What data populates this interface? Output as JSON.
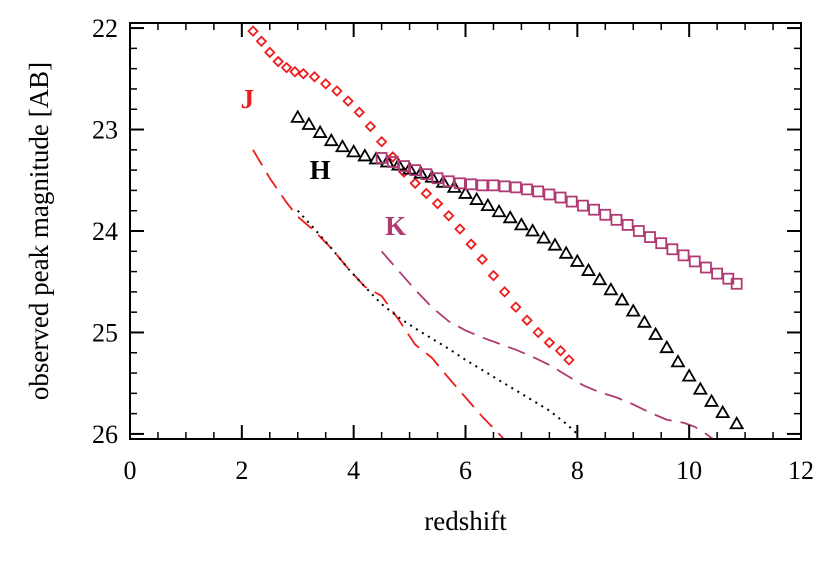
{
  "chart_data": {
    "type": "line",
    "title": "",
    "xlabel": "redshift",
    "ylabel": "observed peak magnitude [AB]",
    "xlim": [
      0,
      12
    ],
    "ylim": [
      26.05,
      21.95
    ],
    "y_inverted": true,
    "grid": false,
    "xticks": [
      0,
      2,
      4,
      6,
      8,
      10,
      12
    ],
    "xtick_labels": [
      "0",
      "2",
      "4",
      "6",
      "8",
      "10",
      "12"
    ],
    "yticks": [
      22,
      23,
      24,
      25,
      26
    ],
    "ytick_labels": [
      "22",
      "23",
      "24",
      "25",
      "26"
    ],
    "colors": {
      "J": "#ee1c1c",
      "H": "#000000",
      "K": "#b03a74"
    },
    "series_labels": [
      {
        "text": "J",
        "color": "#ee1c1c",
        "x": 2.1,
        "y": 22.7
      },
      {
        "text": "H",
        "color": "#000000",
        "x": 3.4,
        "y": 23.4
      },
      {
        "text": "K",
        "color": "#b03a74",
        "x": 4.75,
        "y": 23.95
      }
    ],
    "series": [
      {
        "band": "J",
        "style": "markers",
        "marker": "diamond",
        "color": "#ee1c1c",
        "x": [
          2.2,
          2.35,
          2.5,
          2.65,
          2.8,
          2.95,
          3.1,
          3.3,
          3.5,
          3.7,
          3.9,
          4.1,
          4.3,
          4.5,
          4.7,
          4.9,
          5.1,
          5.3,
          5.5,
          5.7,
          5.9,
          6.1,
          6.3,
          6.5,
          6.7,
          6.9,
          7.1,
          7.3,
          7.5,
          7.7,
          7.85
        ],
        "y": [
          22.03,
          22.13,
          22.24,
          22.33,
          22.39,
          22.43,
          22.45,
          22.48,
          22.55,
          22.62,
          22.72,
          22.83,
          22.97,
          23.12,
          23.27,
          23.42,
          23.53,
          23.63,
          23.73,
          23.85,
          23.98,
          24.13,
          24.28,
          24.44,
          24.6,
          24.75,
          24.88,
          25.0,
          25.1,
          25.18,
          25.27
        ]
      },
      {
        "band": "H",
        "style": "markers",
        "marker": "triangle",
        "color": "#000000",
        "x": [
          3.0,
          3.2,
          3.4,
          3.6,
          3.8,
          4.0,
          4.2,
          4.4,
          4.6,
          4.8,
          5.0,
          5.2,
          5.4,
          5.6,
          5.8,
          6.0,
          6.2,
          6.4,
          6.6,
          6.8,
          7.0,
          7.2,
          7.4,
          7.6,
          7.8,
          8.0,
          8.2,
          8.4,
          8.6,
          8.8,
          9.0,
          9.2,
          9.4,
          9.6,
          9.8,
          10.0,
          10.2,
          10.4,
          10.6,
          10.85
        ],
        "y": [
          22.88,
          22.95,
          23.03,
          23.11,
          23.17,
          23.22,
          23.26,
          23.29,
          23.32,
          23.35,
          23.39,
          23.43,
          23.47,
          23.52,
          23.57,
          23.63,
          23.69,
          23.75,
          23.81,
          23.87,
          23.94,
          24.0,
          24.07,
          24.14,
          24.22,
          24.3,
          24.39,
          24.48,
          24.58,
          24.68,
          24.79,
          24.9,
          25.02,
          25.15,
          25.29,
          25.43,
          25.56,
          25.68,
          25.79,
          25.9
        ]
      },
      {
        "band": "K",
        "style": "markers",
        "marker": "square",
        "color": "#b03a74",
        "x": [
          4.5,
          4.7,
          4.9,
          5.1,
          5.3,
          5.5,
          5.7,
          5.9,
          6.1,
          6.3,
          6.5,
          6.7,
          6.9,
          7.1,
          7.3,
          7.5,
          7.7,
          7.9,
          8.1,
          8.3,
          8.5,
          8.7,
          8.9,
          9.1,
          9.3,
          9.5,
          9.7,
          9.9,
          10.1,
          10.3,
          10.5,
          10.7,
          10.85
        ],
        "y": [
          23.28,
          23.32,
          23.36,
          23.4,
          23.44,
          23.48,
          23.51,
          23.53,
          23.54,
          23.55,
          23.55,
          23.56,
          23.57,
          23.59,
          23.61,
          23.64,
          23.67,
          23.71,
          23.75,
          23.79,
          23.84,
          23.89,
          23.94,
          24.0,
          24.06,
          24.12,
          24.18,
          24.24,
          24.3,
          24.36,
          24.42,
          24.47,
          24.52
        ]
      },
      {
        "band": "J",
        "style": "dashed",
        "color": "#ee1c1c",
        "x": [
          2.2,
          2.5,
          2.8,
          3.0,
          3.3,
          3.6,
          3.9,
          4.2,
          4.5,
          4.8,
          5.1,
          5.4,
          5.7,
          6.0,
          6.3,
          6.6,
          6.8
        ],
        "y": [
          23.2,
          23.48,
          23.72,
          23.86,
          24.0,
          24.17,
          24.37,
          24.55,
          24.64,
          24.87,
          25.12,
          25.25,
          25.45,
          25.64,
          25.83,
          26.0,
          26.12
        ]
      },
      {
        "band": "H",
        "style": "dotted",
        "color": "#000000",
        "x": [
          3.0,
          3.3,
          3.6,
          3.9,
          4.2,
          4.5,
          4.8,
          5.1,
          5.4,
          5.7,
          6.0,
          6.3,
          6.6,
          6.9,
          7.2,
          7.5,
          7.8,
          8.0
        ],
        "y": [
          23.8,
          23.98,
          24.17,
          24.37,
          24.55,
          24.72,
          24.85,
          24.96,
          25.06,
          25.16,
          25.27,
          25.37,
          25.47,
          25.57,
          25.67,
          25.77,
          25.9,
          26.0
        ]
      },
      {
        "band": "K",
        "style": "dashed",
        "color": "#b03a74",
        "x": [
          4.5,
          4.8,
          5.1,
          5.4,
          5.7,
          6.0,
          6.3,
          6.6,
          6.9,
          7.2,
          7.5,
          7.8,
          8.1,
          8.4,
          8.7,
          9.0,
          9.3,
          9.6,
          9.9,
          10.1,
          10.3,
          10.45
        ],
        "y": [
          24.2,
          24.39,
          24.58,
          24.75,
          24.89,
          24.98,
          25.05,
          25.11,
          25.17,
          25.24,
          25.32,
          25.42,
          25.52,
          25.59,
          25.64,
          25.71,
          25.79,
          25.86,
          25.89,
          25.93,
          26.0,
          26.06
        ]
      }
    ]
  }
}
